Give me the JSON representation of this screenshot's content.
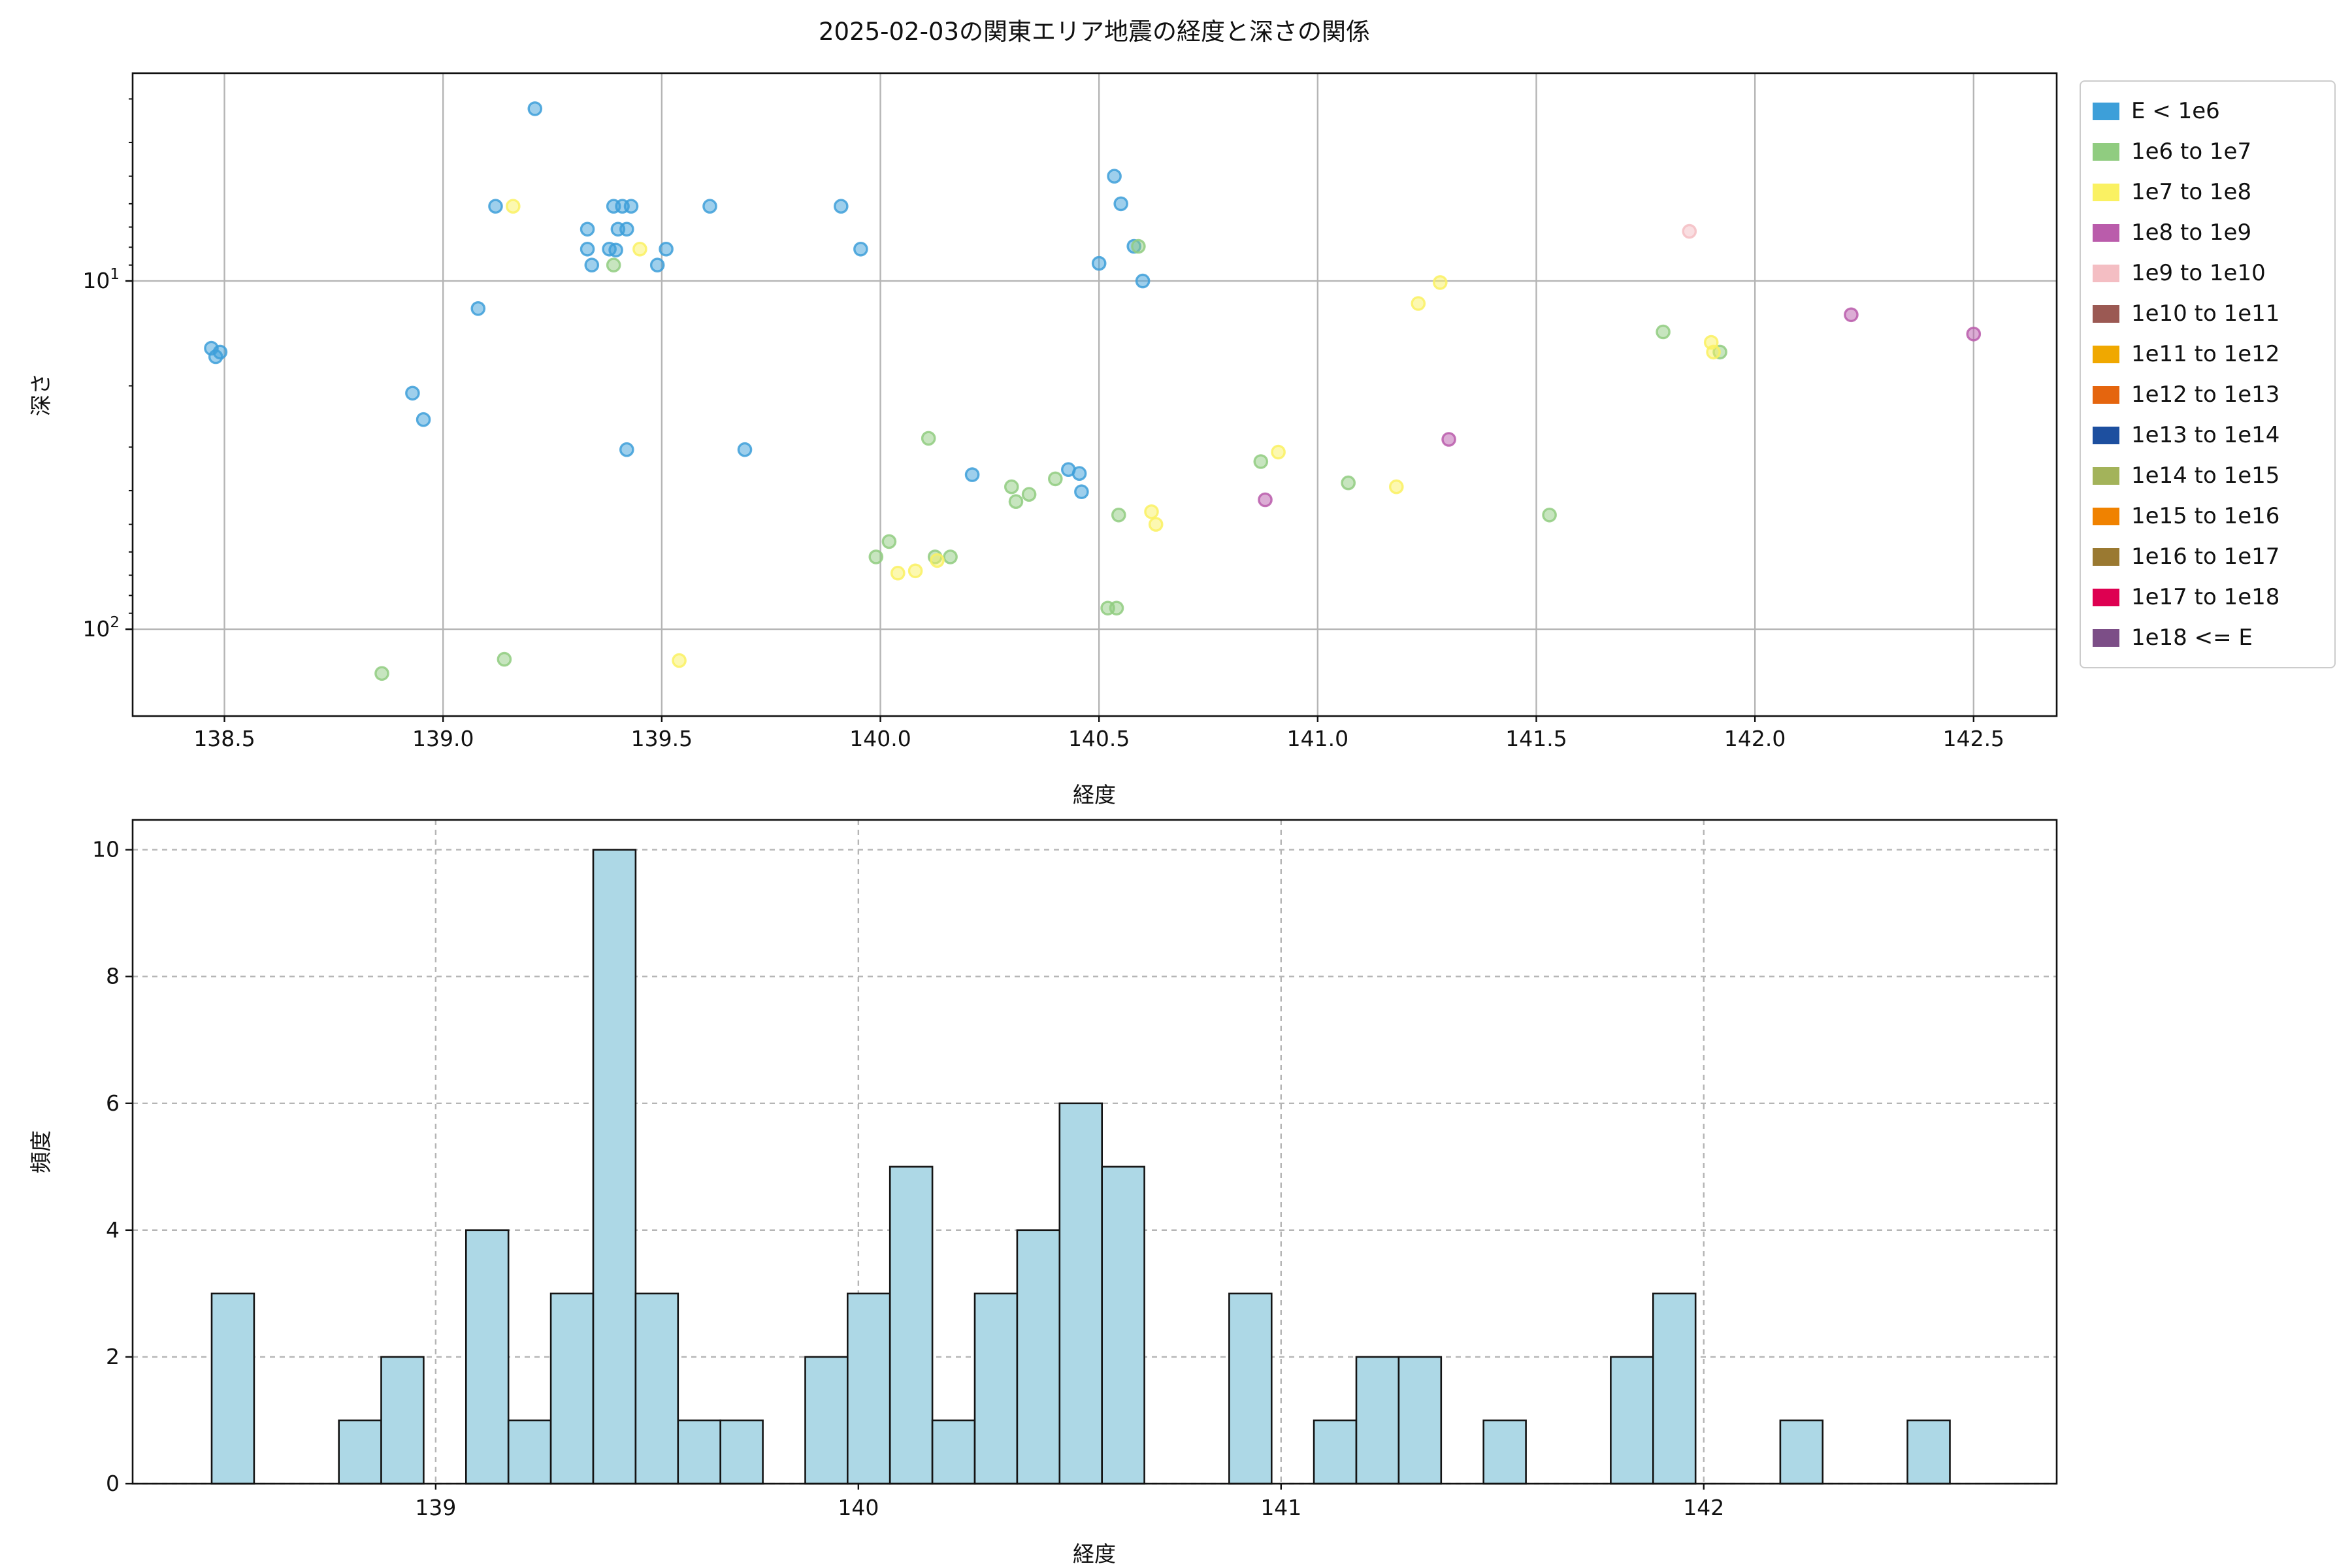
{
  "figure": {
    "title": "2025-02-03の関東エリア地震の経度と深さの関係"
  },
  "legend": {
    "entries": [
      {
        "label": "E < 1e6",
        "color": "#3D9FD9"
      },
      {
        "label": "1e6 to 1e7",
        "color": "#90CC80"
      },
      {
        "label": "1e7 to 1e8",
        "color": "#FAF162"
      },
      {
        "label": "1e8 to 1e9",
        "color": "#BA5CAB"
      },
      {
        "label": "1e9 to 1e10",
        "color": "#F4BEC3"
      },
      {
        "label": "1e10 to 1e11",
        "color": "#9B5953"
      },
      {
        "label": "1e11 to 1e12",
        "color": "#F0A800"
      },
      {
        "label": "1e12 to 1e13",
        "color": "#E5650E"
      },
      {
        "label": "1e13 to 1e14",
        "color": "#1D4F9F"
      },
      {
        "label": "1e14 to 1e15",
        "color": "#A3B35A"
      },
      {
        "label": "1e15 to 1e16",
        "color": "#F08200"
      },
      {
        "label": "1e16 to 1e17",
        "color": "#9A7931"
      },
      {
        "label": "1e17 to 1e18",
        "color": "#DE0051"
      },
      {
        "label": "1e18 <= E",
        "color": "#7C4E87"
      }
    ]
  },
  "chart_data": [
    {
      "type": "scatter",
      "title": "2025-02-03の関東エリア地震の経度と深さの関係",
      "xlabel": "経度",
      "ylabel": "深さ",
      "xlim": [
        138.29,
        142.69
      ],
      "ylim_log_inverted": [
        2.53,
        177.6
      ],
      "xticks": [
        138.5,
        139.0,
        139.5,
        140.0,
        140.5,
        141.0,
        141.5,
        142.0,
        142.5
      ],
      "yticks": [
        {
          "base": "10",
          "sup": "1",
          "value": 10
        },
        {
          "base": "10",
          "sup": "2",
          "value": 100
        }
      ],
      "yminor": [
        3,
        4,
        5,
        6,
        7,
        8,
        9,
        20,
        30,
        40,
        50,
        60,
        70,
        80,
        90
      ],
      "grid": "solid",
      "legend_position": "outside upper right",
      "series": [
        {
          "name": "E < 1e6",
          "color": "#3D9FD9",
          "points": [
            [
              138.47,
              15.6
            ],
            [
              138.48,
              16.5
            ],
            [
              138.49,
              16.0
            ],
            [
              138.93,
              21.0
            ],
            [
              138.955,
              25.0
            ],
            [
              139.08,
              12.0
            ],
            [
              139.12,
              6.1
            ],
            [
              139.21,
              3.2
            ],
            [
              139.33,
              7.1
            ],
            [
              139.33,
              8.1
            ],
            [
              139.34,
              9.0
            ],
            [
              139.38,
              8.1
            ],
            [
              139.395,
              8.15
            ],
            [
              139.39,
              6.1
            ],
            [
              139.41,
              6.1
            ],
            [
              139.43,
              6.1
            ],
            [
              139.4,
              7.1
            ],
            [
              139.42,
              7.1
            ],
            [
              139.42,
              30.5
            ],
            [
              139.49,
              9.0
            ],
            [
              139.51,
              8.1
            ],
            [
              139.61,
              6.1
            ],
            [
              139.69,
              30.5
            ],
            [
              139.91,
              6.1
            ],
            [
              139.955,
              8.1
            ],
            [
              140.21,
              36.0
            ],
            [
              140.43,
              34.8
            ],
            [
              140.455,
              35.7
            ],
            [
              140.46,
              40.3
            ],
            [
              140.5,
              8.9
            ],
            [
              140.535,
              5.0
            ],
            [
              140.55,
              6.0
            ],
            [
              140.58,
              7.95
            ],
            [
              140.6,
              10.0
            ]
          ]
        },
        {
          "name": "1e6 to 1e7",
          "color": "#90CC80",
          "points": [
            [
              138.86,
              134.0
            ],
            [
              139.14,
              122.0
            ],
            [
              139.39,
              9.0
            ],
            [
              139.99,
              62.0
            ],
            [
              140.02,
              56.0
            ],
            [
              140.11,
              28.3
            ],
            [
              140.125,
              62.0
            ],
            [
              140.16,
              62.0
            ],
            [
              140.3,
              39.0
            ],
            [
              140.31,
              43.0
            ],
            [
              140.34,
              41.0
            ],
            [
              140.4,
              37.0
            ],
            [
              140.52,
              87.0
            ],
            [
              140.54,
              87.0
            ],
            [
              140.545,
              47.0
            ],
            [
              140.59,
              7.95
            ],
            [
              140.87,
              33.0
            ],
            [
              141.07,
              38.0
            ],
            [
              141.53,
              47.0
            ],
            [
              141.79,
              14.0
            ],
            [
              141.92,
              16.0
            ]
          ]
        },
        {
          "name": "1e7 to 1e8",
          "color": "#FAF162",
          "points": [
            [
              139.16,
              6.1
            ],
            [
              139.45,
              8.1
            ],
            [
              139.54,
              123.0
            ],
            [
              140.04,
              69.0
            ],
            [
              140.08,
              68.0
            ],
            [
              140.13,
              63.5
            ],
            [
              140.62,
              46.0
            ],
            [
              140.63,
              50.0
            ],
            [
              140.91,
              31.0
            ],
            [
              141.18,
              39.0
            ],
            [
              141.23,
              11.6
            ],
            [
              141.28,
              10.1
            ],
            [
              141.9,
              15.0
            ],
            [
              141.905,
              16.0
            ]
          ]
        },
        {
          "name": "1e8 to 1e9",
          "color": "#BA5CAB",
          "points": [
            [
              140.88,
              42.5
            ],
            [
              141.3,
              28.5
            ],
            [
              142.22,
              12.5
            ],
            [
              142.5,
              14.2
            ]
          ]
        },
        {
          "name": "1e9 to 1e10",
          "color": "#F4BEC3",
          "points": [
            [
              141.85,
              7.2
            ]
          ]
        }
      ]
    },
    {
      "type": "bar",
      "xlabel": "経度",
      "ylabel": "頻度",
      "xlim": [
        138.283,
        142.835
      ],
      "ylim": [
        0,
        10.47
      ],
      "xticks": [
        139,
        140,
        141,
        142
      ],
      "yticks": [
        0,
        2,
        4,
        6,
        8,
        10
      ],
      "grid": "dashed",
      "bar_fill": "#ADD8E6",
      "bar_edge": "#141414",
      "bin_start": 138.47,
      "bin_width": 0.1003,
      "counts": [
        3,
        0,
        0,
        1,
        2,
        0,
        4,
        1,
        3,
        10,
        3,
        1,
        1,
        0,
        2,
        3,
        5,
        1,
        3,
        4,
        6,
        5,
        0,
        0,
        3,
        0,
        1,
        2,
        2,
        0,
        1,
        0,
        0,
        2,
        3,
        0,
        0,
        1,
        0,
        0,
        1
      ]
    }
  ]
}
